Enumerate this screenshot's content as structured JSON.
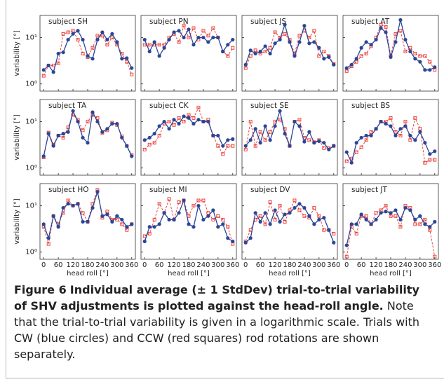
{
  "chart_data": [
    {
      "type": "line",
      "title": "subject SH",
      "x": [
        0,
        20,
        40,
        60,
        80,
        100,
        120,
        140,
        160,
        180,
        200,
        220,
        240,
        260,
        280,
        300,
        320,
        340,
        360
      ],
      "xlim": [
        -15,
        375
      ],
      "ylim": [
        0.7,
        30
      ],
      "log_y": true,
      "xticks": [
        0,
        60,
        120,
        180,
        240,
        300,
        360
      ],
      "yticks": [
        {
          "value": 1,
          "label": "10⁰"
        },
        {
          "value": 10,
          "label": "10¹"
        }
      ],
      "ylabel": "variability [°]",
      "series": [
        {
          "color": "#2b4696",
          "marker": "circle",
          "dashed": false,
          "values": [
            2,
            2.5,
            1.8,
            4.5,
            4.8,
            9,
            12,
            14,
            9,
            4,
            3.5,
            9,
            13,
            9,
            12,
            8,
            3.5,
            3.6,
            2.2
          ]
        },
        {
          "color": "#e8302c",
          "marker": "square",
          "dashed": true,
          "values": [
            1.5,
            2.5,
            2.5,
            2.8,
            12,
            13,
            14,
            9,
            4.5,
            3.8,
            6,
            11,
            11,
            7,
            10,
            7,
            4.5,
            3,
            1.6
          ]
        }
      ]
    },
    {
      "type": "line",
      "title": "subject PN",
      "x": [
        0,
        20,
        40,
        60,
        80,
        100,
        120,
        140,
        160,
        180,
        200,
        220,
        240,
        260,
        280,
        300,
        320,
        340,
        360
      ],
      "xlim": [
        -15,
        375
      ],
      "ylim": [
        0.7,
        30
      ],
      "log_y": true,
      "xticks": [
        0,
        60,
        120,
        180,
        240,
        300,
        360
      ],
      "yticks": [
        1,
        10
      ],
      "series": [
        {
          "color": "#2b4696",
          "marker": "circle",
          "dashed": false,
          "values": [
            9,
            5,
            8,
            4,
            6,
            9,
            13,
            14,
            10,
            15,
            7,
            10,
            10,
            8,
            10,
            10,
            5,
            7,
            9
          ]
        },
        {
          "color": "#e8302c",
          "marker": "square",
          "dashed": true,
          "values": [
            7,
            7,
            7,
            7,
            7,
            10,
            12,
            8,
            18,
            10,
            16,
            9,
            14,
            11,
            16,
            10,
            5,
            4,
            6
          ]
        }
      ]
    },
    {
      "type": "line",
      "title": "subject JS",
      "x": [
        0,
        20,
        40,
        60,
        80,
        100,
        120,
        140,
        160,
        180,
        200,
        220,
        240,
        260,
        280,
        300,
        320,
        340,
        360
      ],
      "xlim": [
        -15,
        375
      ],
      "ylim": [
        0.7,
        30
      ],
      "log_y": true,
      "xticks": [
        0,
        60,
        120,
        180,
        240,
        300,
        360
      ],
      "yticks": [
        1,
        10
      ],
      "series": [
        {
          "color": "#2b4696",
          "marker": "circle",
          "dashed": false,
          "values": [
            2.6,
            5.3,
            4.5,
            5,
            6.5,
            4.5,
            7.5,
            9,
            19,
            8,
            4,
            8,
            18,
            7.5,
            8,
            6,
            3.5,
            3.8,
            2.6
          ]
        },
        {
          "color": "#e8302c",
          "marker": "square",
          "dashed": true,
          "values": [
            2.2,
            4,
            5.3,
            4.5,
            5,
            6,
            13,
            10,
            12,
            9,
            4.5,
            11,
            14,
            10,
            14,
            4,
            5,
            4,
            2.7
          ]
        }
      ]
    },
    {
      "type": "line",
      "title": "subject AT",
      "x": [
        0,
        20,
        40,
        60,
        80,
        100,
        120,
        140,
        160,
        180,
        200,
        220,
        240,
        260,
        280,
        300,
        320,
        340,
        360
      ],
      "xlim": [
        -15,
        375
      ],
      "ylim": [
        0.7,
        30
      ],
      "log_y": true,
      "xticks": [
        0,
        60,
        120,
        180,
        240,
        300,
        360
      ],
      "yticks": [
        1,
        10
      ],
      "series": [
        {
          "color": "#2b4696",
          "marker": "circle",
          "dashed": false,
          "values": [
            2.2,
            2.6,
            3.5,
            6,
            8,
            7,
            9,
            16,
            13,
            3.8,
            8,
            24,
            9,
            5,
            3.5,
            3,
            2,
            2,
            2.3
          ]
        },
        {
          "color": "#e8302c",
          "marker": "square",
          "dashed": true,
          "values": [
            1.9,
            2.4,
            3,
            4,
            4.5,
            6.5,
            10,
            19,
            17,
            4,
            12,
            14,
            5,
            6,
            4.5,
            4,
            4,
            3,
            2
          ]
        }
      ]
    },
    {
      "type": "line",
      "title": "subject TA",
      "x": [
        0,
        20,
        40,
        60,
        80,
        100,
        120,
        140,
        160,
        180,
        200,
        220,
        240,
        260,
        280,
        300,
        320,
        340,
        360
      ],
      "xlim": [
        -15,
        375
      ],
      "ylim": [
        0.7,
        30
      ],
      "log_y": true,
      "xticks": [
        0,
        60,
        120,
        180,
        240,
        300,
        360
      ],
      "yticks": [
        {
          "value": 1,
          "label": "10⁰"
        },
        {
          "value": 10,
          "label": "10¹"
        }
      ],
      "ylabel": "variability [°]",
      "series": [
        {
          "color": "#2b4696",
          "marker": "circle",
          "dashed": false,
          "values": [
            1.8,
            5.5,
            3,
            5,
            5.5,
            6,
            17,
            10,
            4.5,
            3.5,
            16,
            10,
            6,
            7,
            9,
            9,
            4.5,
            3,
            1.8
          ]
        },
        {
          "color": "#e8302c",
          "marker": "square",
          "dashed": true,
          "values": [
            1.7,
            5.8,
            3.2,
            5,
            4.5,
            7.5,
            14,
            11,
            6.5,
            10,
            14,
            12,
            5.7,
            6.5,
            9.5,
            8.5,
            4.8,
            3,
            1.9
          ]
        }
      ]
    },
    {
      "type": "line",
      "title": "subject CK",
      "x": [
        0,
        20,
        40,
        60,
        80,
        100,
        120,
        140,
        160,
        180,
        200,
        220,
        240,
        260,
        280,
        300,
        320,
        340,
        360
      ],
      "xlim": [
        -15,
        375
      ],
      "ylim": [
        0.7,
        30
      ],
      "log_y": true,
      "xticks": [
        0,
        60,
        120,
        180,
        240,
        300,
        360
      ],
      "yticks": [
        1,
        10
      ],
      "series": [
        {
          "color": "#2b4696",
          "marker": "circle",
          "dashed": false,
          "values": [
            4,
            4.5,
            5.5,
            8,
            10,
            7,
            11,
            9,
            13,
            12,
            9,
            11,
            10,
            10,
            5,
            5,
            3,
            4,
            4.2
          ]
        },
        {
          "color": "#e8302c",
          "marker": "square",
          "dashed": true,
          "values": [
            2.5,
            3.2,
            3.5,
            5,
            9,
            10,
            8.5,
            12,
            10,
            14,
            12,
            20,
            10,
            11,
            5,
            3,
            2,
            3,
            3
          ]
        }
      ]
    },
    {
      "type": "line",
      "title": "subject SE",
      "x": [
        0,
        20,
        40,
        60,
        80,
        100,
        120,
        140,
        160,
        180,
        200,
        220,
        240,
        260,
        280,
        300,
        320,
        340,
        360
      ],
      "xlim": [
        -15,
        375
      ],
      "ylim": [
        0.7,
        30
      ],
      "log_y": true,
      "xticks": [
        0,
        60,
        120,
        180,
        240,
        300,
        360
      ],
      "yticks": [
        1,
        10
      ],
      "series": [
        {
          "color": "#2b4696",
          "marker": "circle",
          "dashed": false,
          "values": [
            3,
            4,
            7,
            3.5,
            8,
            4,
            8,
            17,
            5.5,
            3,
            10,
            8,
            3.7,
            6,
            3.5,
            3.8,
            3.5,
            2.5,
            3
          ]
        },
        {
          "color": "#e8302c",
          "marker": "square",
          "dashed": true,
          "values": [
            2.5,
            10,
            3,
            6,
            4,
            6,
            10,
            11,
            7,
            3,
            10,
            11,
            4.5,
            4,
            3.6,
            4,
            2.7,
            2.7,
            3
          ]
        }
      ]
    },
    {
      "type": "line",
      "title": "subject BS",
      "x": [
        0,
        20,
        40,
        60,
        80,
        100,
        120,
        140,
        160,
        180,
        200,
        220,
        240,
        260,
        280,
        300,
        320,
        340,
        360
      ],
      "xlim": [
        -15,
        375
      ],
      "ylim": [
        0.7,
        30
      ],
      "log_y": true,
      "xticks": [
        0,
        60,
        120,
        180,
        240,
        300,
        360
      ],
      "yticks": [
        1,
        10
      ],
      "series": [
        {
          "color": "#2b4696",
          "marker": "circle",
          "dashed": false,
          "values": [
            2.2,
            1.3,
            3.5,
            4.5,
            5,
            5,
            7,
            10,
            9,
            8,
            5,
            7,
            8,
            5,
            4,
            6,
            3.5,
            2,
            2.3
          ]
        },
        {
          "color": "#e8302c",
          "marker": "square",
          "dashed": true,
          "values": [
            1.4,
            1.6,
            2.2,
            2.8,
            4,
            6,
            7,
            10,
            10,
            12,
            6,
            5,
            10,
            4,
            12,
            7,
            1.3,
            1.5,
            1.5
          ]
        }
      ]
    },
    {
      "type": "line",
      "title": "subject HO",
      "x": [
        0,
        20,
        40,
        60,
        80,
        100,
        120,
        140,
        160,
        180,
        200,
        220,
        240,
        260,
        280,
        300,
        320,
        340,
        360
      ],
      "xlim": [
        -15,
        375
      ],
      "ylim": [
        0.7,
        30
      ],
      "log_y": true,
      "xticks": [
        0,
        60,
        120,
        180,
        240,
        300,
        360
      ],
      "yticks": [
        {
          "value": 1,
          "label": "10⁰"
        },
        {
          "value": 10,
          "label": "10¹"
        }
      ],
      "ylabel": "variability [°]",
      "xlabel": "head roll [°]",
      "series": [
        {
          "color": "#2b4696",
          "marker": "circle",
          "dashed": false,
          "values": [
            4,
            2,
            6,
            3.5,
            9,
            11,
            10,
            11,
            4.5,
            4.5,
            9,
            20,
            6,
            6.5,
            4.5,
            6,
            5,
            3.5,
            4
          ]
        },
        {
          "color": "#e8302c",
          "marker": "square",
          "dashed": true,
          "values": [
            3.5,
            1.5,
            6,
            4,
            7,
            13,
            10,
            11,
            7,
            4.5,
            11,
            22,
            5.5,
            7.5,
            5,
            5,
            4,
            3,
            4
          ]
        }
      ]
    },
    {
      "type": "line",
      "title": "subject MI",
      "x": [
        0,
        20,
        40,
        60,
        80,
        100,
        120,
        140,
        160,
        180,
        200,
        220,
        240,
        260,
        280,
        300,
        320,
        340,
        360
      ],
      "xlim": [
        -15,
        375
      ],
      "ylim": [
        0.7,
        30
      ],
      "log_y": true,
      "xticks": [
        0,
        60,
        120,
        180,
        240,
        300,
        360
      ],
      "yticks": [
        1,
        10
      ],
      "xlabel": "head roll [°]",
      "series": [
        {
          "color": "#2b4696",
          "marker": "circle",
          "dashed": false,
          "values": [
            1.7,
            3.5,
            3.5,
            4,
            7,
            5,
            5,
            7,
            13,
            4,
            3.5,
            10,
            5,
            6,
            8,
            3.5,
            4,
            2,
            1.7
          ]
        },
        {
          "color": "#e8302c",
          "marker": "square",
          "dashed": true,
          "values": [
            2.2,
            2.5,
            5,
            11,
            7,
            14,
            5,
            12,
            13,
            6,
            10,
            13,
            13,
            7,
            5,
            6,
            5,
            3.5,
            1.5
          ]
        }
      ]
    },
    {
      "type": "line",
      "title": "subject DV",
      "x": [
        0,
        20,
        40,
        60,
        80,
        100,
        120,
        140,
        160,
        180,
        200,
        220,
        240,
        260,
        280,
        300,
        320,
        340,
        360
      ],
      "xlim": [
        -15,
        375
      ],
      "ylim": [
        0.7,
        30
      ],
      "log_y": true,
      "xticks": [
        0,
        60,
        120,
        180,
        240,
        300,
        360
      ],
      "yticks": [
        1,
        10
      ],
      "xlabel": "head roll [°]",
      "series": [
        {
          "color": "#2b4696",
          "marker": "circle",
          "dashed": false,
          "values": [
            1.6,
            2,
            7,
            4.5,
            7,
            4,
            8,
            4.5,
            6.5,
            7,
            9,
            11,
            9,
            6,
            4,
            5,
            5.5,
            3,
            1.6
          ]
        },
        {
          "color": "#e8302c",
          "marker": "square",
          "dashed": true,
          "values": [
            1.7,
            3,
            5,
            6,
            4,
            12,
            5,
            10,
            4.5,
            8,
            13,
            8,
            6,
            5.5,
            9,
            6,
            3,
            3,
            2.5
          ]
        }
      ]
    },
    {
      "type": "line",
      "title": "subject JT",
      "x": [
        0,
        20,
        40,
        60,
        80,
        100,
        120,
        140,
        160,
        180,
        200,
        220,
        240,
        260,
        280,
        300,
        320,
        340,
        360
      ],
      "xlim": [
        -15,
        375
      ],
      "ylim": [
        0.7,
        30
      ],
      "log_y": true,
      "xticks": [
        0,
        60,
        120,
        180,
        240,
        300,
        360
      ],
      "yticks": [
        1,
        10
      ],
      "xlabel": "head roll [°]",
      "series": [
        {
          "color": "#2b4696",
          "marker": "circle",
          "dashed": false,
          "values": [
            1.4,
            4,
            4,
            6.5,
            5,
            4,
            5,
            7,
            7.5,
            7,
            8,
            5,
            9,
            8,
            5,
            6,
            4,
            3.5,
            4.5
          ]
        },
        {
          "color": "#e8302c",
          "marker": "square",
          "dashed": true,
          "values": [
            0.8,
            3.5,
            2.5,
            6,
            6,
            4,
            7,
            8,
            10,
            6,
            6,
            3.5,
            10,
            9,
            4,
            4,
            5,
            3,
            0.8
          ]
        }
      ]
    }
  ],
  "figure": {
    "label": "Figure 6",
    "title": "Individual average (± 1 StdDev) trial-to-trial variability of SHV adjustments is plotted against the head-roll angle.",
    "text": "Note that the trial-to-trial variability is given in a logarithmic scale. Trials with CW (blue circles) and CCW (red squares) rod rotations are shown separately."
  }
}
